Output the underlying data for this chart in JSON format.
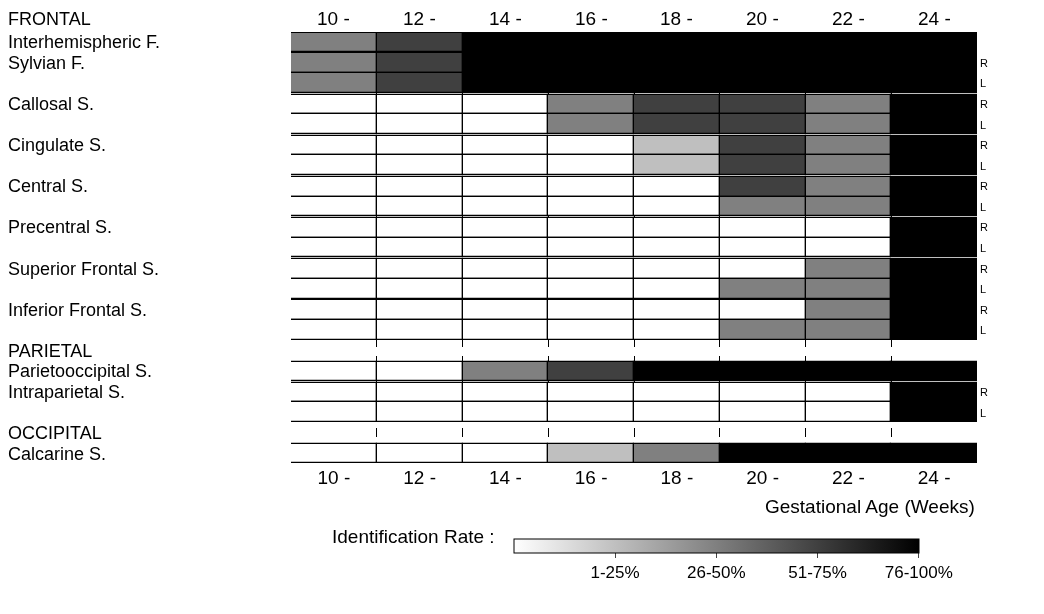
{
  "chart_data": {
    "type": "heatmap",
    "xlabel": "Gestational Age (Weeks)",
    "clabel": "Identification Rate :",
    "annotations": [
      "FRONTAL"
    ],
    "categories": [
      "10 -",
      "12 -",
      "14 -",
      "16 -",
      "18 -",
      "20 -",
      "22 -",
      "24 -"
    ],
    "y_categories": [
      "Interhemispheric F.",
      "Sylvian F.",
      null,
      "Callosal S.",
      null,
      "Cingulate S.",
      null,
      "Central S.",
      null,
      "Precentral S.",
      null,
      "Superior Frontal S.",
      null,
      "Inferior Frontal S.",
      null,
      "PARIETAL",
      "Parietooccipital S.",
      "Intraparietal S.",
      null,
      "OCCIPITAL",
      "Calcarine S."
    ],
    "y2_categories": [
      null,
      "R",
      "L",
      "R",
      "L",
      "R",
      "L",
      "R",
      "L",
      "R",
      "L",
      "R",
      "L",
      "R",
      "L",
      null,
      null,
      "R",
      "L",
      null,
      null
    ],
    "cells": [
      [
        2,
        3,
        4,
        4,
        4,
        4,
        4,
        4
      ],
      [
        2,
        3,
        4,
        4,
        4,
        4,
        4,
        4
      ],
      [
        2,
        3,
        4,
        4,
        4,
        4,
        4,
        4
      ],
      [
        0,
        0,
        0,
        2,
        3,
        3,
        2,
        4
      ],
      [
        0,
        0,
        0,
        2,
        3,
        3,
        2,
        4
      ],
      [
        0,
        0,
        0,
        0,
        1,
        3,
        2,
        4
      ],
      [
        0,
        0,
        0,
        0,
        1,
        3,
        2,
        4
      ],
      [
        0,
        0,
        0,
        0,
        0,
        3,
        2,
        4
      ],
      [
        0,
        0,
        0,
        0,
        0,
        2,
        2,
        4
      ],
      [
        0,
        0,
        0,
        0,
        0,
        0,
        0,
        4
      ],
      [
        0,
        0,
        0,
        0,
        0,
        0,
        0,
        4
      ],
      [
        0,
        0,
        0,
        0,
        0,
        0,
        2,
        4
      ],
      [
        0,
        0,
        0,
        0,
        0,
        2,
        2,
        4
      ],
      [
        0,
        0,
        0,
        0,
        0,
        0,
        2,
        4
      ],
      [
        0,
        0,
        0,
        0,
        0,
        2,
        2,
        4
      ],
      [
        null,
        null,
        null,
        null,
        null,
        null,
        null,
        null
      ],
      [
        0,
        0,
        2,
        3,
        4,
        4,
        4,
        4
      ],
      [
        0,
        0,
        0,
        0,
        0,
        0,
        0,
        4
      ],
      [
        0,
        0,
        0,
        0,
        0,
        0,
        0,
        4
      ],
      [
        null,
        null,
        null,
        null,
        null,
        null,
        null,
        null
      ],
      [
        0,
        0,
        0,
        1,
        2,
        4,
        4,
        4
      ]
    ],
    "clim": [
      0,
      4
    ],
    "cticks": [
      {
        "value": 1,
        "label": "1-25%"
      },
      {
        "value": 2,
        "label": "26-50%"
      },
      {
        "value": 3,
        "label": "51-75%"
      },
      {
        "value": 4,
        "label": "76-100%"
      }
    ],
    "grid": "x"
  }
}
